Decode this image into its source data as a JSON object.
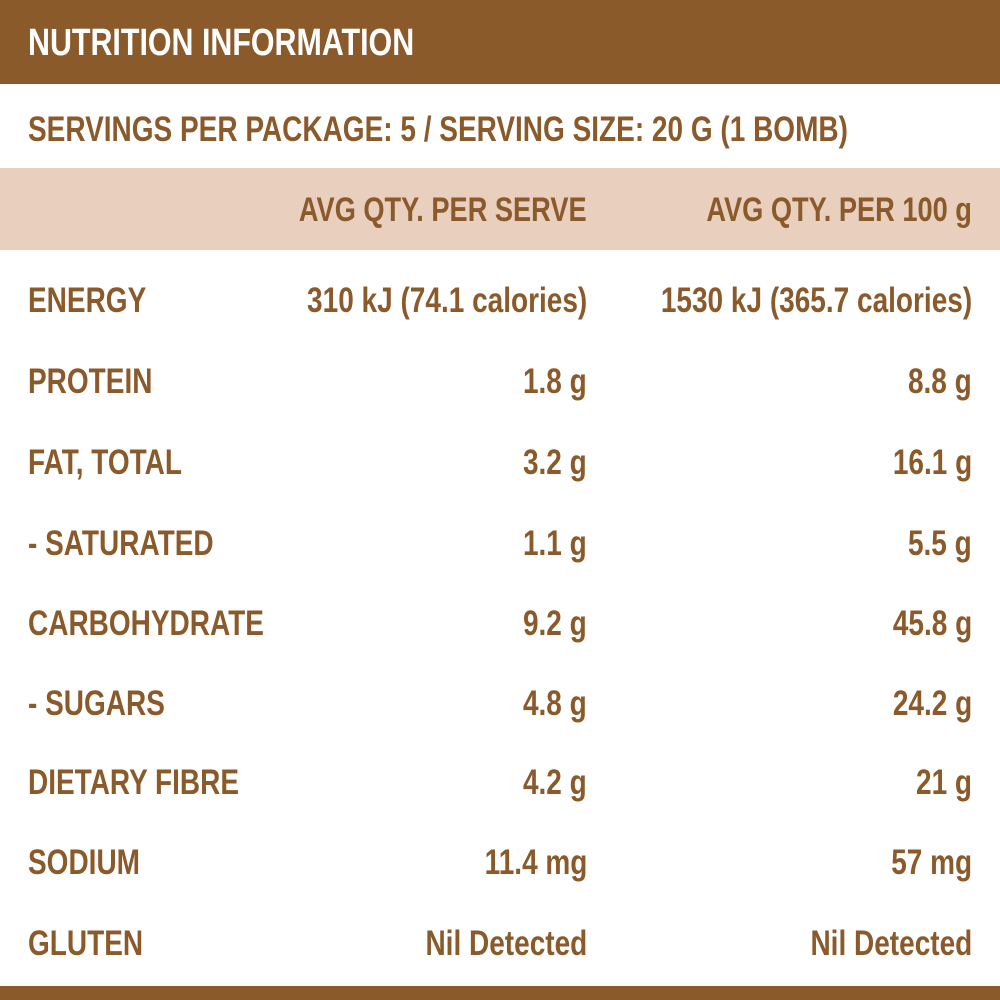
{
  "title": "NUTRITION INFORMATION",
  "servings_line": "SERVINGS PER PACKAGE: 5 / SERVING SIZE: 20 G (1 BOMB)",
  "columns": {
    "per_serve": "AVG QTY. PER SERVE",
    "per_100g": "AVG QTY. PER 100 g"
  },
  "rows": [
    {
      "name": "ENERGY",
      "per_serve": "310 kJ (74.1 calories)",
      "per_100g": "1530 kJ (365.7 calories)"
    },
    {
      "name": "PROTEIN",
      "per_serve": "1.8 g",
      "per_100g": "8.8 g"
    },
    {
      "name": "FAT, TOTAL",
      "per_serve": "3.2 g",
      "per_100g": "16.1 g"
    },
    {
      "name": "- SATURATED",
      "per_serve": "1.1 g",
      "per_100g": "5.5 g"
    },
    {
      "name": "CARBOHYDRATE",
      "per_serve": "9.2 g",
      "per_100g": "45.8 g"
    },
    {
      "name": "- SUGARS",
      "per_serve": "4.8 g",
      "per_100g": "24.2 g"
    },
    {
      "name": "DIETARY FIBRE",
      "per_serve": "4.2 g",
      "per_100g": "21 g"
    },
    {
      "name": "SODIUM",
      "per_serve": "11.4 mg",
      "per_100g": "57 mg"
    },
    {
      "name": "GLUTEN",
      "per_serve": "Nil Detected",
      "per_100g": "Nil Detected"
    }
  ],
  "colors": {
    "brand_brown": "#8b5a2b",
    "header_band": "#e8cfbe",
    "background": "#ffffff"
  }
}
